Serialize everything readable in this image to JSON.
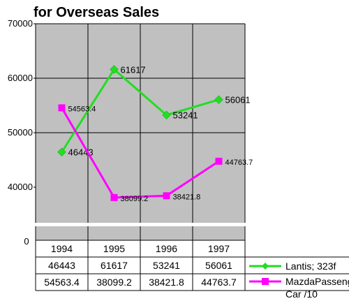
{
  "chart_data": {
    "type": "line",
    "title": "for Overseas Sales",
    "categories": [
      "1994",
      "1995",
      "1996",
      "1997"
    ],
    "ylim": [
      0,
      70000
    ],
    "y_ticks": [
      "0",
      "40000",
      "50000",
      "60000",
      "70000"
    ],
    "axis_break": true,
    "grid": true,
    "legend_position": "bottom-right (beside data table)",
    "series": [
      {
        "name": "Lantis; 323f",
        "color": "#22dd22",
        "marker": "diamond",
        "values": [
          46443,
          61617,
          53241,
          56061
        ],
        "labels": [
          "46443",
          "61617",
          "53241",
          "56061"
        ]
      },
      {
        "name_lines": [
          "MazdaPassenger",
          "Car /10"
        ],
        "color": "#ff00ff",
        "marker": "square",
        "values": [
          54563.4,
          38099.2,
          38421.8,
          44763.7
        ],
        "labels": [
          "54563.4",
          "38099.2",
          "38421.8",
          "44763.7"
        ]
      }
    ],
    "table": {
      "rows": [
        [
          "46443",
          "61617",
          "53241",
          "56061"
        ],
        [
          "54563.4",
          "38099.2",
          "38421.8",
          "44763.7"
        ]
      ]
    }
  }
}
